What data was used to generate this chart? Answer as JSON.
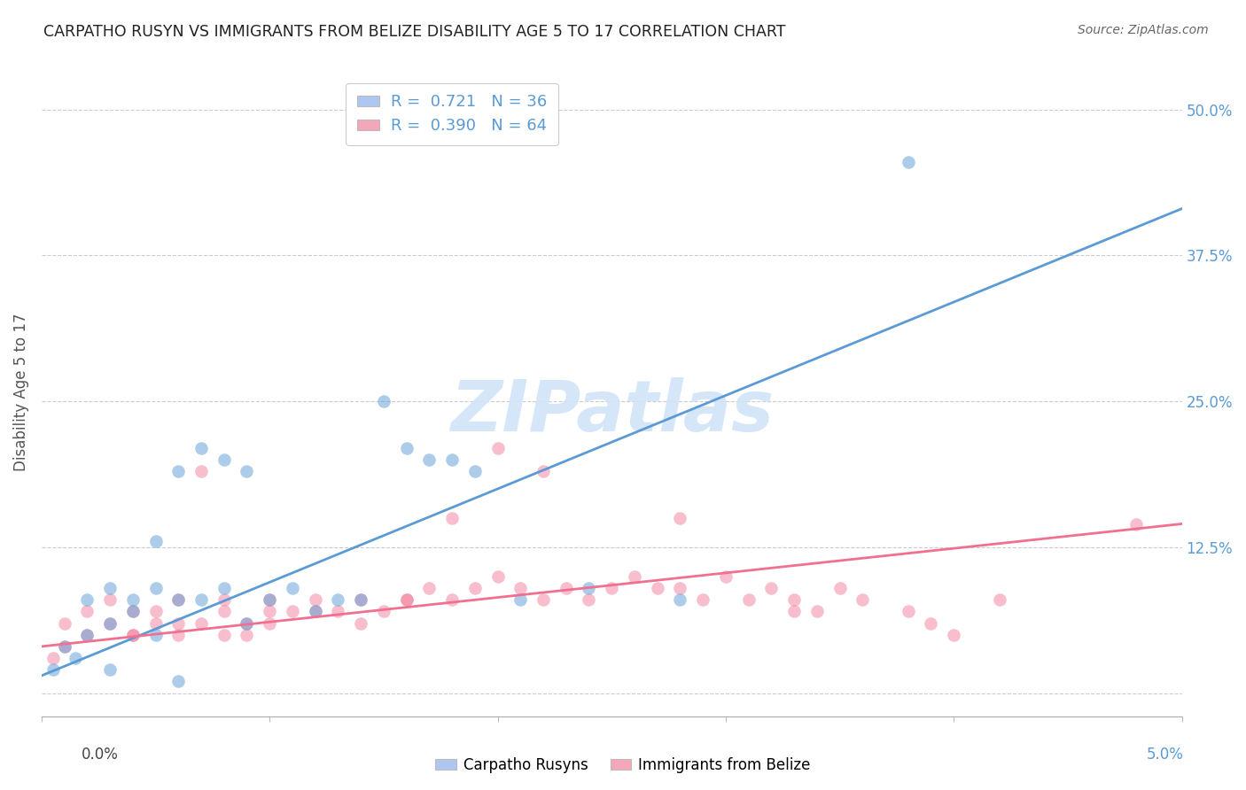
{
  "title": "CARPATHO RUSYN VS IMMIGRANTS FROM BELIZE DISABILITY AGE 5 TO 17 CORRELATION CHART",
  "source": "Source: ZipAtlas.com",
  "ylabel": "Disability Age 5 to 17",
  "legend1_label": "R =  0.721   N = 36",
  "legend2_label": "R =  0.390   N = 64",
  "legend1_color": "#aec6f0",
  "legend2_color": "#f4a7b9",
  "blue_color": "#5b9bd5",
  "pink_color": "#f07090",
  "watermark_color": "#d0e4f7",
  "blue_scatter_x": [
    0.0005,
    0.001,
    0.0015,
    0.002,
    0.002,
    0.003,
    0.003,
    0.004,
    0.004,
    0.005,
    0.005,
    0.005,
    0.006,
    0.006,
    0.007,
    0.007,
    0.008,
    0.008,
    0.009,
    0.009,
    0.01,
    0.011,
    0.012,
    0.013,
    0.014,
    0.015,
    0.016,
    0.017,
    0.018,
    0.019,
    0.021,
    0.024,
    0.028,
    0.038,
    0.003,
    0.006
  ],
  "blue_scatter_y": [
    0.02,
    0.04,
    0.03,
    0.05,
    0.08,
    0.06,
    0.09,
    0.07,
    0.08,
    0.05,
    0.09,
    0.13,
    0.08,
    0.19,
    0.21,
    0.08,
    0.2,
    0.09,
    0.19,
    0.06,
    0.08,
    0.09,
    0.07,
    0.08,
    0.08,
    0.25,
    0.21,
    0.2,
    0.2,
    0.19,
    0.08,
    0.09,
    0.08,
    0.455,
    0.02,
    0.01
  ],
  "pink_scatter_x": [
    0.0005,
    0.001,
    0.001,
    0.002,
    0.002,
    0.003,
    0.003,
    0.004,
    0.004,
    0.005,
    0.005,
    0.006,
    0.006,
    0.007,
    0.007,
    0.008,
    0.008,
    0.009,
    0.009,
    0.01,
    0.01,
    0.011,
    0.012,
    0.013,
    0.014,
    0.015,
    0.016,
    0.017,
    0.018,
    0.019,
    0.02,
    0.021,
    0.022,
    0.023,
    0.025,
    0.026,
    0.027,
    0.028,
    0.029,
    0.03,
    0.031,
    0.032,
    0.033,
    0.034,
    0.035,
    0.036,
    0.038,
    0.039,
    0.04,
    0.042,
    0.004,
    0.006,
    0.008,
    0.01,
    0.012,
    0.014,
    0.016,
    0.018,
    0.02,
    0.022,
    0.024,
    0.028,
    0.033,
    0.048
  ],
  "pink_scatter_y": [
    0.03,
    0.04,
    0.06,
    0.05,
    0.07,
    0.06,
    0.08,
    0.07,
    0.05,
    0.06,
    0.07,
    0.05,
    0.08,
    0.06,
    0.19,
    0.08,
    0.07,
    0.06,
    0.05,
    0.07,
    0.08,
    0.07,
    0.08,
    0.07,
    0.06,
    0.07,
    0.08,
    0.09,
    0.15,
    0.09,
    0.1,
    0.09,
    0.08,
    0.09,
    0.09,
    0.1,
    0.09,
    0.15,
    0.08,
    0.1,
    0.08,
    0.09,
    0.08,
    0.07,
    0.09,
    0.08,
    0.07,
    0.06,
    0.05,
    0.08,
    0.05,
    0.06,
    0.05,
    0.06,
    0.07,
    0.08,
    0.08,
    0.08,
    0.21,
    0.19,
    0.08,
    0.09,
    0.07,
    0.145
  ],
  "xlim": [
    0.0,
    0.05
  ],
  "ylim": [
    -0.02,
    0.535
  ],
  "blue_line_x": [
    0.0,
    0.05
  ],
  "blue_line_y": [
    0.015,
    0.415
  ],
  "pink_line_x": [
    0.0,
    0.05
  ],
  "pink_line_y": [
    0.04,
    0.145
  ],
  "yticks": [
    0.0,
    0.125,
    0.25,
    0.375,
    0.5
  ],
  "ytick_labels": [
    "",
    "12.5%",
    "25.0%",
    "37.5%",
    "50.0%"
  ]
}
